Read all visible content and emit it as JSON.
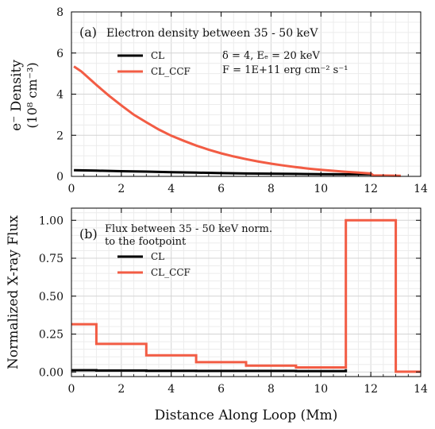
{
  "chart_data": [
    {
      "id": "a",
      "type": "line",
      "panel_label": "(a)",
      "title": "Electron density between 35 - 50 keV",
      "ylabel_line1": "e⁻ Density",
      "ylabel_line2": "(10⁸ cm⁻³)",
      "xlim": [
        0,
        14
      ],
      "ylim": [
        0,
        8
      ],
      "xticks": [
        "0",
        "2",
        "4",
        "6",
        "8",
        "10",
        "12",
        "14"
      ],
      "yticks": [
        "0",
        "2",
        "4",
        "6",
        "8"
      ],
      "params_line1": "δ = 4, Eₑ = 20 keV",
      "params_line2": "F = 1E+11 erg cm⁻² s⁻¹",
      "grid": true,
      "legend_location": "upper-left",
      "series": [
        {
          "name": "CL",
          "color": "#000000",
          "x": [
            0.1,
            1,
            2,
            3,
            4,
            5,
            6,
            7,
            8,
            9,
            10,
            11,
            12
          ],
          "y": [
            0.3,
            0.28,
            0.25,
            0.23,
            0.2,
            0.18,
            0.16,
            0.14,
            0.13,
            0.12,
            0.11,
            0.1,
            0.1
          ]
        },
        {
          "name": "CL_CCF",
          "color": "#f25c44",
          "x": [
            0.1,
            0.4,
            1,
            1.5,
            2,
            2.5,
            3,
            3.5,
            4,
            4.5,
            5,
            5.5,
            6,
            6.5,
            7,
            7.5,
            8,
            8.5,
            9,
            9.5,
            10,
            10.5,
            11,
            11.5,
            12,
            12.1,
            13.2
          ],
          "y": [
            5.35,
            5.1,
            4.45,
            3.93,
            3.45,
            3.0,
            2.63,
            2.28,
            1.98,
            1.73,
            1.5,
            1.3,
            1.12,
            0.97,
            0.84,
            0.72,
            0.62,
            0.53,
            0.45,
            0.38,
            0.32,
            0.27,
            0.22,
            0.18,
            0.14,
            0.05,
            0.03
          ]
        }
      ]
    },
    {
      "id": "b",
      "type": "line",
      "panel_label": "(b)",
      "title_line1": "Flux between 35 - 50 keV norm.",
      "title_line2": "to the footpoint",
      "ylabel": "Normalized X-ray Flux",
      "xlabel": "Distance Along Loop (Mm)",
      "xlim": [
        0,
        14
      ],
      "ylim": [
        -0.03,
        1.08
      ],
      "xticks": [
        "0",
        "2",
        "4",
        "6",
        "8",
        "10",
        "12",
        "14"
      ],
      "yticks": [
        "0.00",
        "0.25",
        "0.50",
        "0.75",
        "1.00"
      ],
      "grid": true,
      "legend_location": "upper-left",
      "series": [
        {
          "name": "CL",
          "color": "#000000",
          "x": [
            0,
            1,
            1,
            3,
            3,
            5,
            5,
            7,
            7,
            9,
            9,
            11,
            11
          ],
          "y": [
            0.012,
            0.012,
            0.01,
            0.01,
            0.008,
            0.008,
            0.007,
            0.007,
            0.007,
            0.007,
            0.006,
            0.006,
            0.018
          ]
        },
        {
          "name": "CL_CCF",
          "color": "#f25c44",
          "x": [
            0,
            1,
            1,
            3,
            3,
            5,
            5,
            7,
            7,
            9,
            9,
            11,
            11,
            13,
            13,
            14
          ],
          "y": [
            0.315,
            0.315,
            0.185,
            0.185,
            0.11,
            0.11,
            0.065,
            0.065,
            0.042,
            0.042,
            0.03,
            0.03,
            1.0,
            1.0,
            0.002,
            0.002
          ]
        }
      ]
    }
  ]
}
